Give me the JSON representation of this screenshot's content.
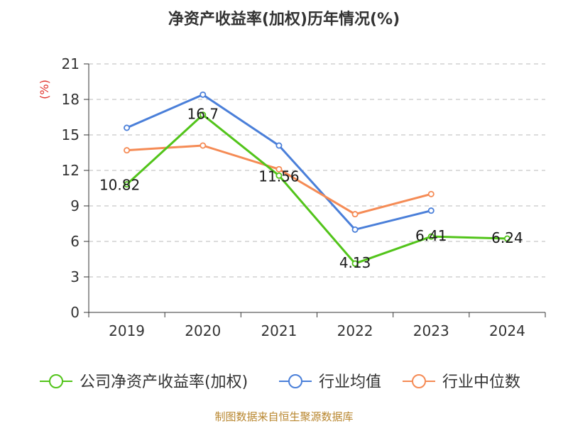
{
  "chart_data": {
    "type": "line",
    "title": "净资产收益率(加权)历年情况(%)",
    "y_unit_label": "(%)",
    "categories": [
      "2019",
      "2020",
      "2021",
      "2022",
      "2023",
      "2024"
    ],
    "ylim": [
      0,
      21
    ],
    "y_ticks": [
      0,
      3,
      6,
      9,
      12,
      15,
      18,
      21
    ],
    "grid": true,
    "legend_position": "bottom",
    "series": [
      {
        "name": "公司净资产收益率(加权)",
        "color": "#52c41a",
        "values": [
          10.82,
          16.7,
          11.56,
          4.13,
          6.41,
          6.24
        ],
        "labels": [
          "10.82",
          "16.7",
          "11.56",
          "4.13",
          "6.41",
          "6.24"
        ]
      },
      {
        "name": "行业均值",
        "color": "#4a7fd9",
        "values": [
          15.6,
          18.4,
          14.1,
          7.0,
          8.6,
          null
        ]
      },
      {
        "name": "行业中位数",
        "color": "#f58b55",
        "values": [
          13.7,
          14.1,
          12.1,
          8.3,
          10.0,
          null
        ]
      }
    ]
  },
  "source": "制图数据来自恒生聚源数据库"
}
